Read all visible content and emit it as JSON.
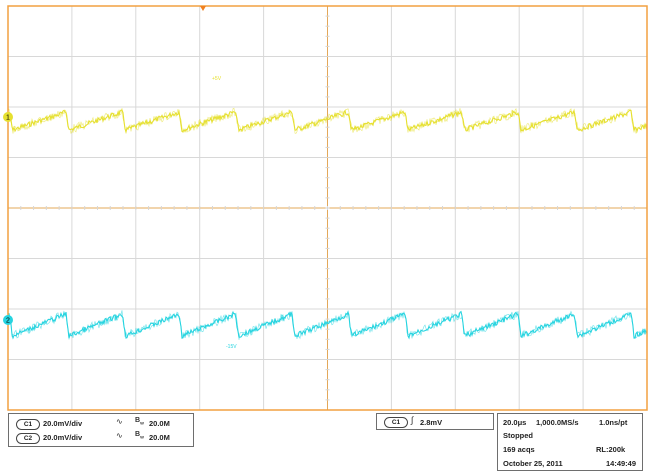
{
  "channels": [
    {
      "id": "C1",
      "scale": "20.0mV/div",
      "bandwidth": "20.0M",
      "color": "#e6e030",
      "marker": "1",
      "label": "+5V"
    },
    {
      "id": "C2",
      "scale": "20.0mV/div",
      "bandwidth": "20.0M",
      "color": "#26d4e0",
      "marker": "2",
      "label": "-15V"
    }
  ],
  "trigger": {
    "source": "C1",
    "level": "2.8mV",
    "color": "#f08020"
  },
  "timebase": {
    "time_per_div": "20.0μs",
    "sample_rate": "1,000.0MS/s",
    "resolution": "1.0ns/pt",
    "status": "Stopped",
    "acquisitions": "169 acqs",
    "record_length": "RL:200k",
    "date": "October 25, 2011",
    "time": "14:49:49"
  },
  "colors": {
    "frame": "#f2a040",
    "grid": "#d8d8d8"
  },
  "icons": {
    "coupling": "wave-coupling-icon",
    "bandwidth": "bandwidth-limit-icon",
    "trigger_edge": "rising-edge-icon"
  }
}
